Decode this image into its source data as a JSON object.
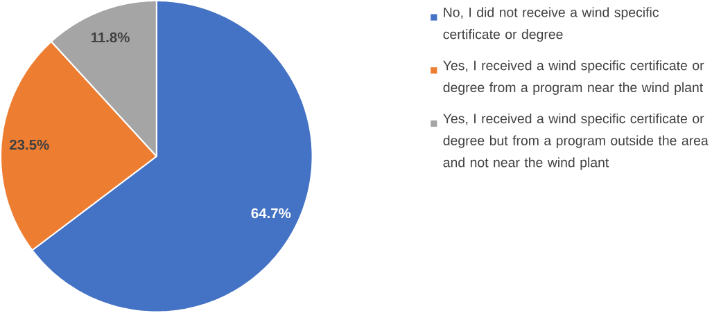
{
  "chart_data": {
    "type": "pie",
    "categories": [
      "No, I did not receive a wind specific certificate or degree",
      "Yes, I received a wind specific certificate or degree from a program near the wind plant",
      "Yes, I received a wind specific certificate or degree but from a program outside the area and not near the wind plant"
    ],
    "values": [
      64.7,
      23.5,
      11.8
    ],
    "value_labels": [
      "64.7%",
      "23.5%",
      "11.8%"
    ],
    "colors": [
      "#4472c4",
      "#ed7d31",
      "#a5a5a5"
    ],
    "legend": "right"
  }
}
